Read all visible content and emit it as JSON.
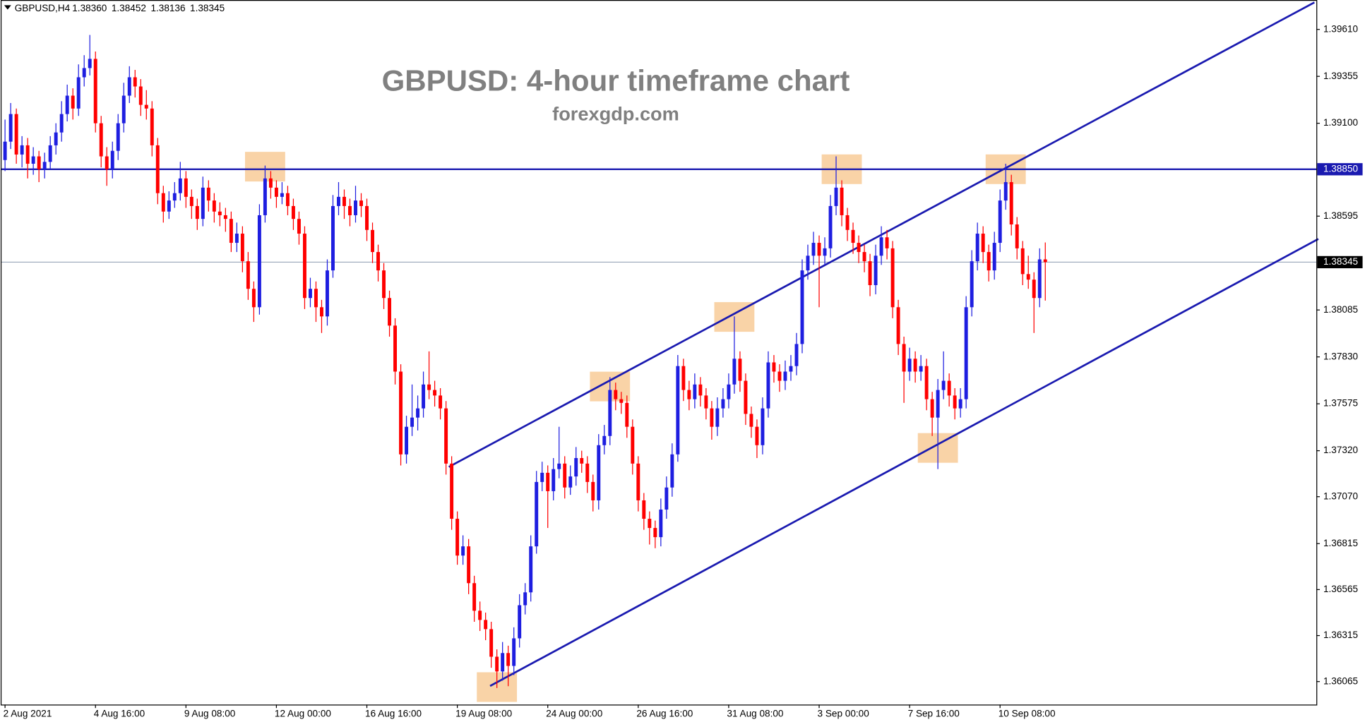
{
  "chart_data": {
    "type": "candlestick",
    "symbol": "GBPUSD,H4",
    "ohlc_labels": [
      "1.38360",
      "1.38452",
      "1.38136",
      "1.38345"
    ],
    "title": "GBPUSD: 4-hour timeframe chart",
    "subtitle": "forexgdp.com",
    "up_color": "#1e1ee0",
    "down_color": "#ff0000",
    "ylim": [
      1.3594,
      1.3977
    ],
    "yticks": [
      {
        "value": 1.3961,
        "label": "1.39610"
      },
      1.39355,
      {
        "value": 1.391,
        "label": "1.39100"
      },
      1.38595,
      1.38085,
      {
        "value": 1.3783,
        "label": "1.37830"
      },
      1.37575,
      {
        "value": 1.3732,
        "label": "1.37320"
      },
      {
        "value": 1.3707,
        "label": "1.37070"
      },
      1.36815,
      1.36565,
      1.36315,
      1.36065
    ],
    "hline": {
      "value": 1.3885,
      "label": "1.38850",
      "color": "#1a1ab0"
    },
    "current_price": 1.38345,
    "trendlines": [
      {
        "x": [
          78.5,
          231.6
        ],
        "y": [
          1.37232,
          1.39757
        ],
        "color": "#1a1ab0"
      },
      {
        "x": [
          85.8,
          232.3
        ],
        "y": [
          1.36041,
          1.38471
        ],
        "color": "#1a1ab0"
      }
    ],
    "highlights": [
      {
        "x": 46,
        "y": 1.38864
      },
      {
        "x": 148,
        "y": 1.3885
      },
      {
        "x": 177,
        "y": 1.3885
      },
      {
        "x": 129,
        "y": 1.38047
      },
      {
        "x": 107,
        "y": 1.37669
      },
      {
        "x": 165,
        "y": 1.37335
      },
      {
        "x": 87,
        "y": 1.36035
      }
    ],
    "highlight_color": "#f7c48a",
    "categories": [
      "2 Aug 2021",
      null,
      null,
      null,
      null,
      null,
      null,
      null,
      null,
      null,
      null,
      null,
      null,
      null,
      null,
      null,
      "4 Aug 16:00",
      null,
      null,
      null,
      null,
      null,
      null,
      null,
      null,
      null,
      null,
      null,
      null,
      null,
      null,
      null,
      "9 Aug 08:00",
      null,
      null,
      null,
      null,
      null,
      null,
      null,
      null,
      null,
      null,
      null,
      null,
      null,
      null,
      null,
      "12 Aug 00:00",
      null,
      null,
      null,
      null,
      null,
      null,
      null,
      null,
      null,
      null,
      null,
      null,
      null,
      null,
      null,
      "16 Aug 16:00",
      null,
      null,
      null,
      null,
      null,
      null,
      null,
      null,
      null,
      null,
      null,
      null,
      null,
      null,
      null,
      "19 Aug 08:00",
      null,
      null,
      null,
      null,
      null,
      null,
      null,
      null,
      null,
      null,
      null,
      null,
      null,
      null,
      null,
      "24 Aug 00:00",
      null,
      null,
      null,
      null,
      null,
      null,
      null,
      null,
      null,
      null,
      null,
      null,
      null,
      null,
      null,
      "26 Aug 16:00",
      null,
      null,
      null,
      null,
      null,
      null,
      null,
      null,
      null,
      null,
      null,
      null,
      null,
      null,
      null,
      "31 Aug 08:00",
      null,
      null,
      null,
      null,
      null,
      null,
      null,
      null,
      null,
      null,
      null,
      null,
      null,
      null,
      null,
      "3 Sep 00:00",
      null,
      null,
      null,
      null,
      null,
      null,
      null,
      null,
      null,
      null,
      null,
      null,
      null,
      null,
      null,
      "7 Sep 16:00",
      null,
      null,
      null,
      null,
      null,
      null,
      null,
      null,
      null,
      null,
      null,
      null,
      null,
      null,
      null,
      "10 Sep 08:00",
      null,
      null,
      null,
      null,
      null,
      null,
      null,
      null
    ],
    "candles": [
      [
        1.389,
        1.3912,
        1.3884,
        1.39
      ],
      [
        1.39,
        1.3921,
        1.3896,
        1.3915
      ],
      [
        1.3915,
        1.3918,
        1.3888,
        1.3893
      ],
      [
        1.3893,
        1.3903,
        1.3886,
        1.3898
      ],
      [
        1.3898,
        1.3902,
        1.388,
        1.3888
      ],
      [
        1.3888,
        1.3897,
        1.3882,
        1.3892
      ],
      [
        1.3892,
        1.3895,
        1.3878,
        1.3885
      ],
      [
        1.3885,
        1.3894,
        1.388,
        1.3889
      ],
      [
        1.3889,
        1.3903,
        1.3885,
        1.3898
      ],
      [
        1.3898,
        1.391,
        1.3893,
        1.3905
      ],
      [
        1.3905,
        1.3922,
        1.39,
        1.3915
      ],
      [
        1.3915,
        1.3931,
        1.3911,
        1.3925
      ],
      [
        1.3925,
        1.3929,
        1.3912,
        1.3918
      ],
      [
        1.3918,
        1.3942,
        1.3914,
        1.3935
      ],
      [
        1.3935,
        1.3947,
        1.393,
        1.394
      ],
      [
        1.394,
        1.3958,
        1.3936,
        1.3945
      ],
      [
        1.3945,
        1.3949,
        1.3905,
        1.391
      ],
      [
        1.391,
        1.3914,
        1.3886,
        1.3892
      ],
      [
        1.3892,
        1.3897,
        1.3876,
        1.3885
      ],
      [
        1.3885,
        1.39,
        1.388,
        1.3895
      ],
      [
        1.3895,
        1.3915,
        1.389,
        1.391
      ],
      [
        1.391,
        1.3932,
        1.3905,
        1.3925
      ],
      [
        1.3925,
        1.3941,
        1.3921,
        1.3935
      ],
      [
        1.3935,
        1.3939,
        1.3924,
        1.393
      ],
      [
        1.393,
        1.3934,
        1.3914,
        1.392
      ],
      [
        1.392,
        1.3928,
        1.3912,
        1.3918
      ],
      [
        1.3918,
        1.3922,
        1.3892,
        1.3898
      ],
      [
        1.3898,
        1.3902,
        1.3866,
        1.3872
      ],
      [
        1.3872,
        1.3876,
        1.3856,
        1.3862
      ],
      [
        1.3862,
        1.3873,
        1.3858,
        1.3868
      ],
      [
        1.3868,
        1.3878,
        1.3864,
        1.3872
      ],
      [
        1.3872,
        1.3889,
        1.3868,
        1.388
      ],
      [
        1.388,
        1.3884,
        1.3864,
        1.387
      ],
      [
        1.387,
        1.3874,
        1.3858,
        1.3865
      ],
      [
        1.3865,
        1.3869,
        1.3852,
        1.3858
      ],
      [
        1.3858,
        1.3881,
        1.3854,
        1.3875
      ],
      [
        1.3875,
        1.3879,
        1.3862,
        1.3868
      ],
      [
        1.3868,
        1.3872,
        1.3856,
        1.3862
      ],
      [
        1.3862,
        1.3867,
        1.3854,
        1.386
      ],
      [
        1.386,
        1.3864,
        1.3851,
        1.3858
      ],
      [
        1.3858,
        1.3862,
        1.384,
        1.3845
      ],
      [
        1.3845,
        1.3856,
        1.384,
        1.385
      ],
      [
        1.385,
        1.3854,
        1.3829,
        1.3835
      ],
      [
        1.3835,
        1.384,
        1.3814,
        1.382
      ],
      [
        1.382,
        1.3824,
        1.3802,
        1.381
      ],
      [
        1.381,
        1.3866,
        1.3806,
        1.386
      ],
      [
        1.386,
        1.3887,
        1.3856,
        1.388
      ],
      [
        1.388,
        1.3884,
        1.3869,
        1.3875
      ],
      [
        1.3875,
        1.3879,
        1.3864,
        1.387
      ],
      [
        1.387,
        1.3878,
        1.3866,
        1.3872
      ],
      [
        1.3872,
        1.3876,
        1.386,
        1.3865
      ],
      [
        1.3865,
        1.3869,
        1.3852,
        1.3858
      ],
      [
        1.3858,
        1.3862,
        1.3844,
        1.385
      ],
      [
        1.385,
        1.3854,
        1.3809,
        1.3815
      ],
      [
        1.3815,
        1.3826,
        1.381,
        1.382
      ],
      [
        1.382,
        1.3824,
        1.3802,
        1.381
      ],
      [
        1.381,
        1.3814,
        1.3796,
        1.3805
      ],
      [
        1.3805,
        1.3836,
        1.38,
        1.383
      ],
      [
        1.383,
        1.3871,
        1.3826,
        1.3865
      ],
      [
        1.3865,
        1.3878,
        1.386,
        1.387
      ],
      [
        1.387,
        1.3874,
        1.3858,
        1.3865
      ],
      [
        1.3865,
        1.3869,
        1.3854,
        1.386
      ],
      [
        1.386,
        1.3876,
        1.3856,
        1.3868
      ],
      [
        1.3868,
        1.3872,
        1.3859,
        1.3865
      ],
      [
        1.3865,
        1.3869,
        1.3846,
        1.3852
      ],
      [
        1.3852,
        1.3856,
        1.3834,
        1.384
      ],
      [
        1.384,
        1.3844,
        1.3824,
        1.383
      ],
      [
        1.383,
        1.3834,
        1.3809,
        1.3815
      ],
      [
        1.3815,
        1.3819,
        1.3794,
        1.38
      ],
      [
        1.38,
        1.3804,
        1.3768,
        1.3775
      ],
      [
        1.3775,
        1.3779,
        1.3724,
        1.373
      ],
      [
        1.373,
        1.3751,
        1.3725,
        1.3745
      ],
      [
        1.3745,
        1.3768,
        1.374,
        1.375
      ],
      [
        1.375,
        1.3762,
        1.3743,
        1.3755
      ],
      [
        1.3755,
        1.3775,
        1.375,
        1.3768
      ],
      [
        1.3768,
        1.3786,
        1.376,
        1.3765
      ],
      [
        1.3765,
        1.377,
        1.3756,
        1.3762
      ],
      [
        1.3762,
        1.3766,
        1.3749,
        1.3755
      ],
      [
        1.3755,
        1.3759,
        1.3719,
        1.3725
      ],
      [
        1.3725,
        1.3729,
        1.3689,
        1.3695
      ],
      [
        1.3695,
        1.3699,
        1.367,
        1.3675
      ],
      [
        1.3675,
        1.3686,
        1.367,
        1.368
      ],
      [
        1.368,
        1.3684,
        1.3654,
        1.366
      ],
      [
        1.366,
        1.3664,
        1.3639,
        1.3645
      ],
      [
        1.3645,
        1.365,
        1.3634,
        1.364
      ],
      [
        1.364,
        1.3644,
        1.3629,
        1.3635
      ],
      [
        1.3635,
        1.3639,
        1.3614,
        1.362
      ],
      [
        1.362,
        1.3624,
        1.3603,
        1.3612
      ],
      [
        1.3612,
        1.3628,
        1.3607,
        1.3622
      ],
      [
        1.3622,
        1.3626,
        1.3604,
        1.3615
      ],
      [
        1.3615,
        1.3636,
        1.361,
        1.363
      ],
      [
        1.363,
        1.3654,
        1.3625,
        1.3648
      ],
      [
        1.3648,
        1.366,
        1.3643,
        1.3655
      ],
      [
        1.3655,
        1.3686,
        1.365,
        1.368
      ],
      [
        1.368,
        1.3721,
        1.3676,
        1.3715
      ],
      [
        1.3715,
        1.3726,
        1.371,
        1.372
      ],
      [
        1.372,
        1.3724,
        1.369,
        1.371
      ],
      [
        1.371,
        1.3728,
        1.3705,
        1.3722
      ],
      [
        1.3722,
        1.3745,
        1.3717,
        1.3725
      ],
      [
        1.3725,
        1.3729,
        1.3706,
        1.3712
      ],
      [
        1.3712,
        1.3724,
        1.3708,
        1.3718
      ],
      [
        1.3718,
        1.3734,
        1.3713,
        1.3728
      ],
      [
        1.3728,
        1.3732,
        1.372,
        1.3725
      ],
      [
        1.3725,
        1.3729,
        1.3709,
        1.3715
      ],
      [
        1.3715,
        1.3719,
        1.3699,
        1.3705
      ],
      [
        1.3705,
        1.3741,
        1.37,
        1.3735
      ],
      [
        1.3735,
        1.3746,
        1.373,
        1.374
      ],
      [
        1.374,
        1.3772,
        1.3735,
        1.3765
      ],
      [
        1.3765,
        1.3769,
        1.3754,
        1.376
      ],
      [
        1.376,
        1.3764,
        1.3752,
        1.3758
      ],
      [
        1.3758,
        1.3762,
        1.3739,
        1.3745
      ],
      [
        1.3745,
        1.3749,
        1.3719,
        1.3725
      ],
      [
        1.3725,
        1.3729,
        1.3699,
        1.3705
      ],
      [
        1.3705,
        1.3709,
        1.3689,
        1.3695
      ],
      [
        1.3695,
        1.3699,
        1.3681,
        1.369
      ],
      [
        1.369,
        1.3694,
        1.3679,
        1.3685
      ],
      [
        1.3685,
        1.3706,
        1.368,
        1.37
      ],
      [
        1.37,
        1.3718,
        1.3695,
        1.3712
      ],
      [
        1.3712,
        1.3736,
        1.3707,
        1.373
      ],
      [
        1.373,
        1.3784,
        1.3726,
        1.3778
      ],
      [
        1.3778,
        1.3782,
        1.3759,
        1.3765
      ],
      [
        1.3765,
        1.377,
        1.3754,
        1.376
      ],
      [
        1.376,
        1.3774,
        1.3755,
        1.3768
      ],
      [
        1.3768,
        1.3772,
        1.3756,
        1.3762
      ],
      [
        1.3762,
        1.3766,
        1.3749,
        1.3755
      ],
      [
        1.3755,
        1.3759,
        1.3738,
        1.3745
      ],
      [
        1.3745,
        1.3761,
        1.374,
        1.3755
      ],
      [
        1.3755,
        1.3766,
        1.375,
        1.376
      ],
      [
        1.376,
        1.3774,
        1.3755,
        1.3768
      ],
      [
        1.3768,
        1.3805,
        1.3763,
        1.3782
      ],
      [
        1.3782,
        1.3786,
        1.3764,
        1.377
      ],
      [
        1.377,
        1.3774,
        1.3746,
        1.3752
      ],
      [
        1.3752,
        1.3756,
        1.3739,
        1.3745
      ],
      [
        1.3745,
        1.3749,
        1.3728,
        1.3735
      ],
      [
        1.3735,
        1.3761,
        1.373,
        1.3755
      ],
      [
        1.3755,
        1.3786,
        1.375,
        1.378
      ],
      [
        1.378,
        1.3784,
        1.3769,
        1.3775
      ],
      [
        1.3775,
        1.3779,
        1.3764,
        1.377
      ],
      [
        1.377,
        1.3781,
        1.3765,
        1.3775
      ],
      [
        1.3775,
        1.3784,
        1.377,
        1.3778
      ],
      [
        1.3778,
        1.3796,
        1.3773,
        1.379
      ],
      [
        1.379,
        1.3836,
        1.3785,
        1.383
      ],
      [
        1.383,
        1.3844,
        1.3825,
        1.3838
      ],
      [
        1.3838,
        1.3851,
        1.3833,
        1.3845
      ],
      [
        1.3845,
        1.3849,
        1.381,
        1.3838
      ],
      [
        1.3838,
        1.3848,
        1.3833,
        1.3842
      ],
      [
        1.3842,
        1.3871,
        1.3837,
        1.3865
      ],
      [
        1.3865,
        1.3892,
        1.386,
        1.3875
      ],
      [
        1.3875,
        1.3879,
        1.3854,
        1.386
      ],
      [
        1.386,
        1.3864,
        1.3846,
        1.3852
      ],
      [
        1.3852,
        1.3856,
        1.3839,
        1.3845
      ],
      [
        1.3845,
        1.3849,
        1.3834,
        1.384
      ],
      [
        1.384,
        1.3844,
        1.3829,
        1.3835
      ],
      [
        1.3835,
        1.3839,
        1.3816,
        1.3822
      ],
      [
        1.3822,
        1.3844,
        1.3817,
        1.3838
      ],
      [
        1.3838,
        1.3854,
        1.3833,
        1.3848
      ],
      [
        1.3848,
        1.3852,
        1.3836,
        1.3842
      ],
      [
        1.3842,
        1.3846,
        1.3804,
        1.381
      ],
      [
        1.381,
        1.3814,
        1.3784,
        1.379
      ],
      [
        1.379,
        1.3794,
        1.3758,
        1.3775
      ],
      [
        1.3775,
        1.3788,
        1.377,
        1.3782
      ],
      [
        1.3782,
        1.3786,
        1.3769,
        1.3775
      ],
      [
        1.3775,
        1.3784,
        1.377,
        1.3778
      ],
      [
        1.3778,
        1.3782,
        1.3754,
        1.376
      ],
      [
        1.376,
        1.3764,
        1.374,
        1.375
      ],
      [
        1.375,
        1.3771,
        1.3722,
        1.3765
      ],
      [
        1.3765,
        1.3786,
        1.376,
        1.377
      ],
      [
        1.377,
        1.3774,
        1.3756,
        1.3762
      ],
      [
        1.3762,
        1.3766,
        1.3749,
        1.3755
      ],
      [
        1.3755,
        1.3766,
        1.375,
        1.376
      ],
      [
        1.376,
        1.3816,
        1.3755,
        1.381
      ],
      [
        1.381,
        1.3841,
        1.3805,
        1.3835
      ],
      [
        1.3835,
        1.3856,
        1.383,
        1.385
      ],
      [
        1.385,
        1.3854,
        1.3834,
        1.384
      ],
      [
        1.384,
        1.3844,
        1.3824,
        1.383
      ],
      [
        1.383,
        1.3851,
        1.3825,
        1.3845
      ],
      [
        1.3845,
        1.3874,
        1.384,
        1.3868
      ],
      [
        1.3868,
        1.3888,
        1.3863,
        1.3878
      ],
      [
        1.3878,
        1.3882,
        1.3849,
        1.3855
      ],
      [
        1.3855,
        1.3859,
        1.3836,
        1.3842
      ],
      [
        1.3842,
        1.3846,
        1.3822,
        1.3828
      ],
      [
        1.3828,
        1.3838,
        1.382,
        1.3825
      ],
      [
        1.3825,
        1.3829,
        1.3796,
        1.3815
      ],
      [
        1.3815,
        1.3842,
        1.381,
        1.3836
      ],
      [
        1.3836,
        1.38452,
        1.38136,
        1.38345
      ]
    ]
  }
}
